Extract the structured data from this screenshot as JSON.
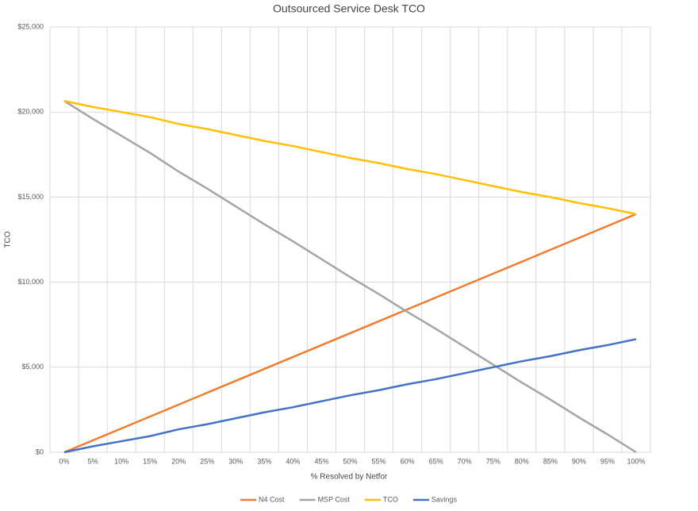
{
  "chart_data": {
    "type": "line",
    "title": "Outsourced Service Desk TCO",
    "x_label": "% Resolved by Netfor",
    "y_label": "TCO",
    "categories": [
      "0%",
      "5%",
      "10%",
      "15%",
      "20%",
      "25%",
      "30%",
      "35%",
      "40%",
      "45%",
      "50%",
      "55%",
      "60%",
      "65%",
      "70%",
      "75%",
      "80%",
      "85%",
      "90%",
      "95%",
      "100%"
    ],
    "series": [
      {
        "name": "N4 Cost",
        "color": "#ED7D31",
        "values": [
          0,
          700,
          1400,
          2100,
          2800,
          3500,
          4200,
          4900,
          5600,
          6300,
          7000,
          7700,
          8400,
          9100,
          9800,
          10500,
          11200,
          11900,
          12600,
          13300,
          14000
        ]
      },
      {
        "name": "MSP Cost",
        "color": "#A5A5A5",
        "values": [
          20650,
          19600,
          18600,
          17600,
          16500,
          15500,
          14450,
          13400,
          12400,
          11350,
          10300,
          9300,
          8250,
          7250,
          6200,
          5150,
          4100,
          3100,
          2050,
          1050,
          0
        ]
      },
      {
        "name": "TCO",
        "color": "#FFC000",
        "values": [
          20650,
          20300,
          20000,
          19700,
          19300,
          19000,
          18650,
          18300,
          18000,
          17650,
          17300,
          17000,
          16650,
          16350,
          16000,
          15650,
          15300,
          15000,
          14650,
          14350,
          14000
        ]
      },
      {
        "name": "Savings",
        "color": "#4472C4",
        "values": [
          0,
          350,
          650,
          950,
          1350,
          1650,
          2000,
          2350,
          2650,
          3000,
          3350,
          3650,
          4000,
          4300,
          4650,
          5000,
          5350,
          5650,
          6000,
          6300,
          6650
        ]
      }
    ],
    "ylim": [
      0,
      25000
    ],
    "yticks": [
      {
        "value": 0,
        "label": "$0"
      },
      {
        "value": 5000,
        "label": "$5,000"
      },
      {
        "value": 10000,
        "label": "$10,000"
      },
      {
        "value": 15000,
        "label": "$15,000"
      },
      {
        "value": 20000,
        "label": "$20,000"
      },
      {
        "value": 25000,
        "label": "$25,000"
      }
    ],
    "grid": true,
    "legend": "bottom"
  }
}
